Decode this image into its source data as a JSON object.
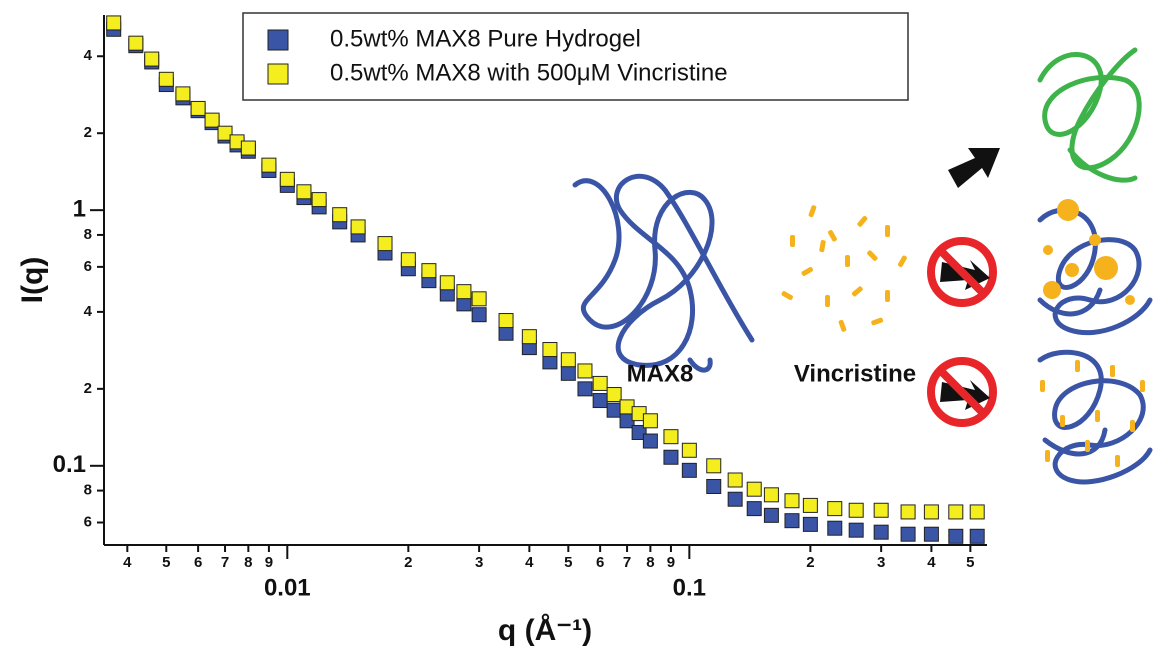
{
  "chart_data": {
    "type": "scatter",
    "x_label": "q (Å⁻¹)",
    "y_label": "I(q)",
    "log_x": true,
    "log_y": true,
    "x": [
      0.0037,
      0.0042,
      0.0046,
      0.005,
      0.0055,
      0.006,
      0.0065,
      0.007,
      0.0075,
      0.008,
      0.009,
      0.01,
      0.011,
      0.012,
      0.0135,
      0.015,
      0.0175,
      0.02,
      0.0225,
      0.025,
      0.0275,
      0.03,
      0.035,
      0.04,
      0.045,
      0.05,
      0.055,
      0.06,
      0.065,
      0.07,
      0.075,
      0.08,
      0.09,
      0.1,
      0.115,
      0.13,
      0.145,
      0.16,
      0.18,
      0.2,
      0.23,
      0.26,
      0.3,
      0.35,
      0.4,
      0.46,
      0.52
    ],
    "series": [
      {
        "name": "0.5wt% MAX8 Pure Hydrogel",
        "color": "#3a55a6",
        "values": [
          5.1,
          4.4,
          3.8,
          3.1,
          2.75,
          2.45,
          2.2,
          1.95,
          1.8,
          1.7,
          1.43,
          1.25,
          1.12,
          1.03,
          0.9,
          0.8,
          0.68,
          0.59,
          0.53,
          0.47,
          0.43,
          0.39,
          0.33,
          0.29,
          0.255,
          0.23,
          0.2,
          0.18,
          0.165,
          0.15,
          0.135,
          0.125,
          0.108,
          0.096,
          0.083,
          0.074,
          0.068,
          0.064,
          0.061,
          0.059,
          0.057,
          0.056,
          0.055,
          0.054,
          0.054,
          0.053,
          0.053
        ]
      },
      {
        "name": "0.5wt% MAX8 with 500μM Vincristine",
        "color": "#f4ee1e",
        "values": [
          5.4,
          4.5,
          3.9,
          3.25,
          2.85,
          2.5,
          2.25,
          2.0,
          1.85,
          1.75,
          1.5,
          1.32,
          1.18,
          1.1,
          0.96,
          0.86,
          0.74,
          0.64,
          0.58,
          0.52,
          0.48,
          0.45,
          0.37,
          0.32,
          0.285,
          0.26,
          0.235,
          0.21,
          0.19,
          0.17,
          0.16,
          0.15,
          0.13,
          0.115,
          0.1,
          0.088,
          0.081,
          0.077,
          0.073,
          0.07,
          0.068,
          0.067,
          0.067,
          0.066,
          0.066,
          0.066,
          0.066
        ]
      }
    ],
    "xlim": [
      0.0035,
      0.55
    ],
    "ylim": [
      0.049,
      5.8
    ],
    "xticks": [
      {
        "value": 0.004,
        "label": "4"
      },
      {
        "value": 0.005,
        "label": "5"
      },
      {
        "value": 0.006,
        "label": "6"
      },
      {
        "value": 0.007,
        "label": "7"
      },
      {
        "value": 0.008,
        "label": "8"
      },
      {
        "value": 0.009,
        "label": "9"
      },
      0.01,
      {
        "value": 0.02,
        "label": "2"
      },
      {
        "value": 0.03,
        "label": "3"
      },
      {
        "value": 0.04,
        "label": "4"
      },
      {
        "value": 0.05,
        "label": "5"
      },
      {
        "value": 0.06,
        "label": "6"
      },
      {
        "value": 0.07,
        "label": "7"
      },
      {
        "value": 0.08,
        "label": "8"
      },
      {
        "value": 0.09,
        "label": "9"
      },
      0.1,
      {
        "value": 0.2,
        "label": "2"
      },
      {
        "value": 0.3,
        "label": "3"
      },
      {
        "value": 0.4,
        "label": "4"
      },
      {
        "value": 0.5,
        "label": "5"
      }
    ],
    "yticks": [
      {
        "value": 0.06,
        "label": "6"
      },
      {
        "value": 0.08,
        "label": "8"
      },
      0.1,
      {
        "value": 0.2,
        "label": "2"
      },
      {
        "value": 0.4,
        "label": "4"
      },
      {
        "value": 0.6,
        "label": "6"
      },
      {
        "value": 0.8,
        "label": "8"
      },
      1,
      {
        "value": 2,
        "label": "2"
      },
      {
        "value": 4,
        "label": "4"
      }
    ],
    "legend": "top",
    "annotations": [
      "MAX8",
      "Vincristine"
    ]
  }
}
